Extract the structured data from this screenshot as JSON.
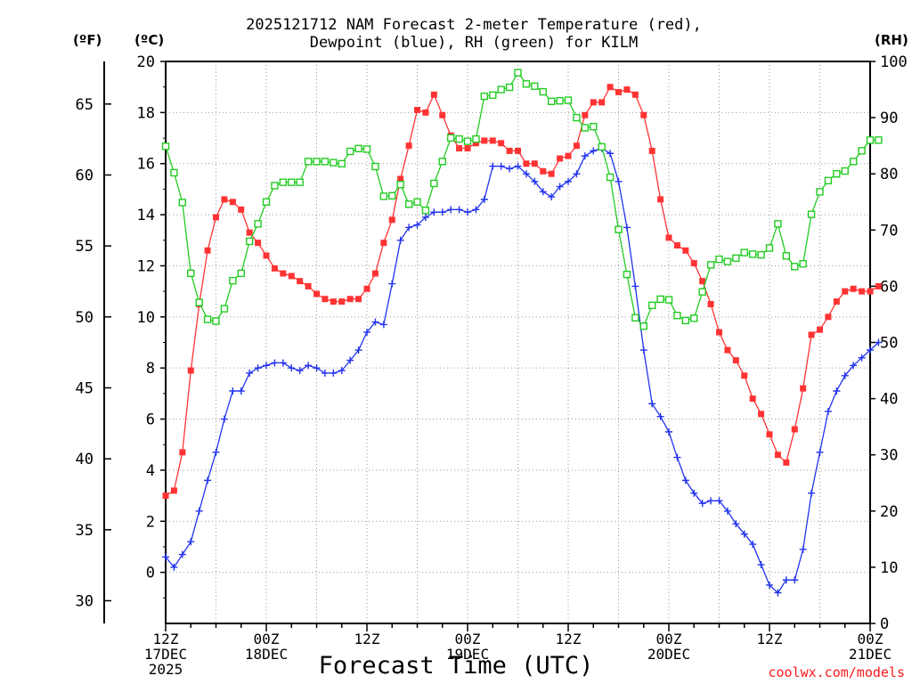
{
  "header": {
    "title_line1": "2025121712 NAM Forecast 2-meter Temperature (red),",
    "title_line2": "Dewpoint (blue), RH (green) for KILM",
    "unit_f": "(ºF)",
    "unit_c": "(ºC)",
    "unit_rh": "(RH)"
  },
  "footer": {
    "xlabel": "Forecast Time (UTC)",
    "credit": "coolwx.com/models"
  },
  "chart_data": {
    "type": "line",
    "title": "2025121712 NAM Forecast 2-meter Temperature (red), Dewpoint (blue), RH (green) for KILM",
    "xlabel": "Forecast Time (UTC)",
    "x_hours_range": [
      0,
      84
    ],
    "x_ticks": [
      {
        "hour": 0,
        "lines": [
          "12Z",
          "17DEC",
          "2025"
        ]
      },
      {
        "hour": 12,
        "lines": [
          "00Z",
          "18DEC"
        ]
      },
      {
        "hour": 24,
        "lines": [
          "12Z"
        ]
      },
      {
        "hour": 36,
        "lines": [
          "00Z",
          "19DEC"
        ]
      },
      {
        "hour": 48,
        "lines": [
          "12Z"
        ]
      },
      {
        "hour": 60,
        "lines": [
          "00Z",
          "20DEC"
        ]
      },
      {
        "hour": 72,
        "lines": [
          "12Z"
        ]
      },
      {
        "hour": 84,
        "lines": [
          "00Z",
          "21DEC"
        ]
      }
    ],
    "y_celsius": {
      "label": "(ºC)",
      "range": [
        -2,
        20
      ],
      "ticks": [
        0,
        2,
        4,
        6,
        8,
        10,
        12,
        14,
        16,
        18,
        20
      ]
    },
    "y_fahrenheit": {
      "label": "(ºF)",
      "ticks": [
        30,
        35,
        40,
        45,
        50,
        55,
        60,
        65
      ]
    },
    "y_rh": {
      "label": "(RH)",
      "range": [
        0,
        100
      ],
      "ticks": [
        0,
        10,
        20,
        30,
        40,
        50,
        60,
        70,
        80,
        90,
        100
      ]
    },
    "grid": true,
    "series": [
      {
        "name": "Temperature",
        "color": "#ff3333",
        "marker": "filled-square",
        "axis": "celsius",
        "values": [
          3.0,
          3.2,
          4.7,
          7.9,
          10.5,
          12.6,
          13.9,
          14.6,
          14.5,
          14.2,
          13.3,
          12.9,
          12.4,
          11.9,
          11.7,
          11.6,
          11.4,
          11.2,
          10.9,
          10.7,
          10.6,
          10.6,
          10.7,
          10.7,
          11.1,
          11.7,
          12.9,
          13.8,
          15.4,
          16.7,
          18.1,
          18.0,
          18.7,
          17.9,
          17.1,
          16.6,
          16.6,
          16.8,
          16.9,
          16.9,
          16.8,
          16.5,
          16.5,
          16.0,
          16.0,
          15.7,
          15.6,
          16.2,
          16.3,
          16.7,
          17.9,
          18.4,
          18.4,
          19.0,
          18.8,
          18.9,
          18.7,
          17.9,
          16.5,
          14.6,
          13.1,
          12.8,
          12.6,
          12.1,
          11.4,
          10.5,
          9.4,
          8.7,
          8.3,
          7.7,
          6.8,
          6.2,
          5.4,
          4.6,
          4.3,
          5.6,
          7.2,
          9.3,
          9.5,
          10.0,
          10.6,
          11.0,
          11.1,
          11.0,
          11.0,
          11.2
        ]
      },
      {
        "name": "Dewpoint",
        "color": "#2233ee",
        "marker": "plus",
        "axis": "celsius",
        "values": [
          0.6,
          0.2,
          0.7,
          1.2,
          2.4,
          3.6,
          4.7,
          6.0,
          7.1,
          7.1,
          7.8,
          8.0,
          8.1,
          8.2,
          8.2,
          8.0,
          7.9,
          8.1,
          8.0,
          7.8,
          7.8,
          7.9,
          8.3,
          8.7,
          9.4,
          9.8,
          9.7,
          11.3,
          13.0,
          13.5,
          13.6,
          13.9,
          14.1,
          14.1,
          14.2,
          14.2,
          14.1,
          14.2,
          14.6,
          15.9,
          15.9,
          15.8,
          15.9,
          15.6,
          15.3,
          14.9,
          14.7,
          15.1,
          15.3,
          15.6,
          16.3,
          16.5,
          16.6,
          16.4,
          15.3,
          13.5,
          11.2,
          8.7,
          6.6,
          6.1,
          5.5,
          4.5,
          3.6,
          3.1,
          2.7,
          2.8,
          2.8,
          2.4,
          1.9,
          1.5,
          1.1,
          0.3,
          -0.5,
          -0.8,
          -0.3,
          -0.3,
          0.9,
          3.1,
          4.7,
          6.3,
          7.1,
          7.7,
          8.1,
          8.4,
          8.7,
          9.0
        ]
      },
      {
        "name": "RH",
        "color": "#22cc22",
        "marker": "open-square",
        "axis": "rh",
        "values": [
          84.9,
          80.2,
          74.9,
          62.3,
          57.1,
          54.1,
          53.8,
          56.0,
          61.0,
          62.3,
          68.0,
          71.1,
          75.0,
          77.9,
          78.5,
          78.5,
          78.5,
          82.2,
          82.2,
          82.2,
          82.0,
          81.8,
          84.0,
          84.5,
          84.4,
          81.3,
          76.0,
          76.1,
          78.1,
          74.6,
          75.0,
          73.5,
          78.3,
          82.2,
          86.4,
          86.2,
          85.8,
          86.2,
          93.8,
          94.0,
          95.0,
          95.4,
          98.0,
          96.0,
          95.6,
          94.6,
          92.9,
          93.0,
          93.1,
          90.0,
          88.2,
          88.4,
          84.8,
          79.4,
          70.1,
          62.1,
          54.4,
          52.9,
          56.6,
          57.7,
          57.6,
          54.8,
          53.9,
          54.3,
          59.0,
          63.8,
          64.8,
          64.4,
          65.0,
          66.0,
          65.7,
          65.6,
          66.8,
          71.1,
          65.4,
          63.5,
          64.0,
          72.8,
          76.8,
          78.8,
          80.0,
          80.5,
          82.2,
          84.1,
          86.0,
          86.0
        ]
      }
    ]
  }
}
